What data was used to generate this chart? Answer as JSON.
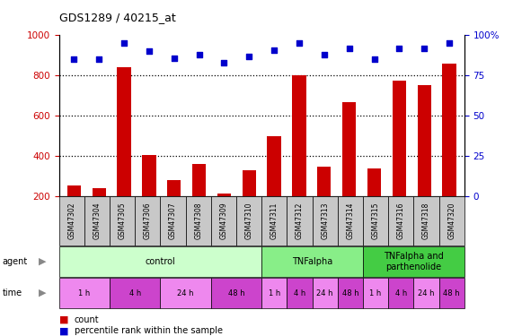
{
  "title": "GDS1289 / 40215_at",
  "samples": [
    "GSM47302",
    "GSM47304",
    "GSM47305",
    "GSM47306",
    "GSM47307",
    "GSM47308",
    "GSM47309",
    "GSM47310",
    "GSM47311",
    "GSM47312",
    "GSM47313",
    "GSM47314",
    "GSM47315",
    "GSM47316",
    "GSM47318",
    "GSM47320"
  ],
  "counts": [
    255,
    240,
    840,
    405,
    280,
    360,
    215,
    330,
    500,
    800,
    350,
    670,
    340,
    775,
    755,
    860
  ],
  "percentiles": [
    85,
    85,
    95,
    90,
    86,
    88,
    83,
    87,
    91,
    95,
    88,
    92,
    85,
    92,
    92,
    95
  ],
  "ylim_left": [
    200,
    1000
  ],
  "ylim_right": [
    0,
    100
  ],
  "yticks_left": [
    200,
    400,
    600,
    800,
    1000
  ],
  "yticks_right": [
    0,
    25,
    50,
    75,
    100
  ],
  "bar_color": "#cc0000",
  "scatter_color": "#0000cc",
  "grid_color": "#000000",
  "plot_bg": "#ffffff",
  "xtick_bg": "#c8c8c8",
  "agent_groups": [
    {
      "label": "control",
      "start": 0,
      "end": 8,
      "color": "#ccffcc"
    },
    {
      "label": "TNFalpha",
      "start": 8,
      "end": 12,
      "color": "#88ee88"
    },
    {
      "label": "TNFalpha and\nparthenolide",
      "start": 12,
      "end": 16,
      "color": "#44cc44"
    }
  ],
  "time_groups": [
    {
      "label": "1 h",
      "start": 0,
      "end": 2,
      "color": "#ee88ee"
    },
    {
      "label": "4 h",
      "start": 2,
      "end": 4,
      "color": "#cc44cc"
    },
    {
      "label": "24 h",
      "start": 4,
      "end": 6,
      "color": "#ee88ee"
    },
    {
      "label": "48 h",
      "start": 6,
      "end": 8,
      "color": "#cc44cc"
    },
    {
      "label": "1 h",
      "start": 8,
      "end": 9,
      "color": "#ee88ee"
    },
    {
      "label": "4 h",
      "start": 9,
      "end": 10,
      "color": "#cc44cc"
    },
    {
      "label": "24 h",
      "start": 10,
      "end": 11,
      "color": "#ee88ee"
    },
    {
      "label": "48 h",
      "start": 11,
      "end": 12,
      "color": "#cc44cc"
    },
    {
      "label": "1 h",
      "start": 12,
      "end": 13,
      "color": "#ee88ee"
    },
    {
      "label": "4 h",
      "start": 13,
      "end": 14,
      "color": "#cc44cc"
    },
    {
      "label": "24 h",
      "start": 14,
      "end": 15,
      "color": "#ee88ee"
    },
    {
      "label": "48 h",
      "start": 15,
      "end": 16,
      "color": "#cc44cc"
    }
  ],
  "legend_count_color": "#cc0000",
  "legend_percentile_color": "#0000cc",
  "bg_color": "#ffffff",
  "tick_label_color_left": "#cc0000",
  "tick_label_color_right": "#0000cc"
}
